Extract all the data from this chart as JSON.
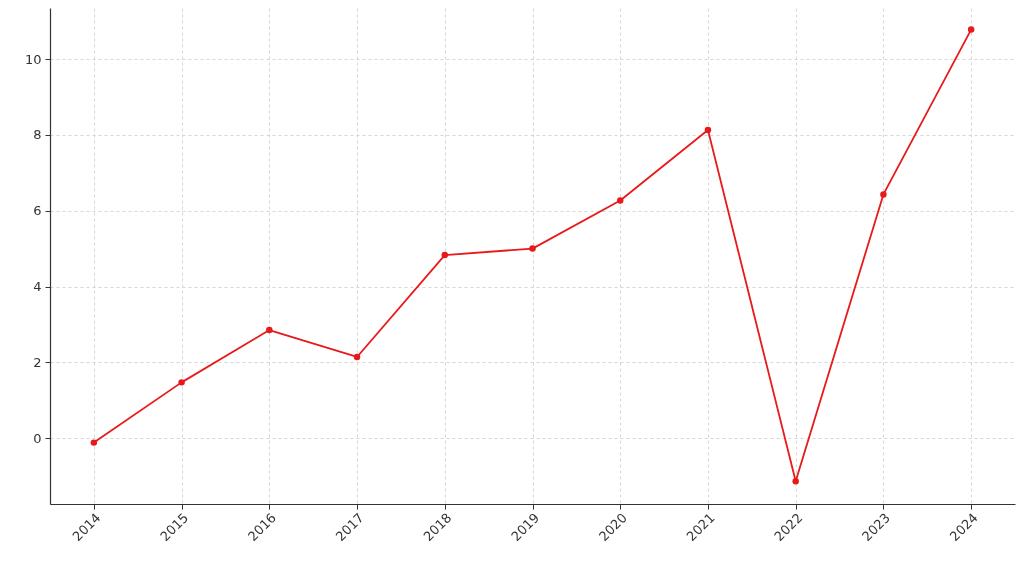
{
  "chart_data": {
    "type": "line",
    "categories": [
      "2014",
      "2015",
      "2016",
      "2017",
      "2018",
      "2019",
      "2020",
      "2021",
      "2022",
      "2023",
      "2024"
    ],
    "series": [
      {
        "color": "#e8191a",
        "values": [
          -0.12,
          1.47,
          2.85,
          2.14,
          4.83,
          5.0,
          6.27,
          8.13,
          -1.14,
          6.43,
          10.78
        ]
      }
    ],
    "ylim": [
      -1.74,
      11.35
    ],
    "yticks": [
      0,
      2,
      4,
      6,
      8,
      10
    ],
    "grid": true,
    "marker": "circle",
    "line_style": "solid"
  }
}
